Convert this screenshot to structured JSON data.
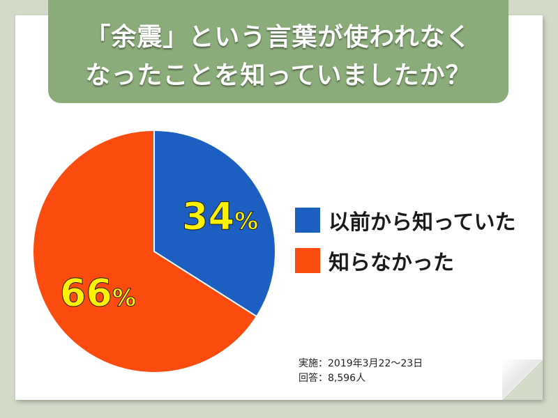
{
  "title": {
    "line1": "「余震」という言葉が使われなく",
    "line2": "なったことを知っていましたか？"
  },
  "colors": {
    "background": "#d3dbc8",
    "banner": "#8aac78",
    "knew": "#1c5fc0",
    "did_not_know": "#fb4b0f",
    "percent_label": "#fff200"
  },
  "chart_data": {
    "type": "pie",
    "title": "「余震」という言葉が使われなくなったことを知っていましたか？",
    "slices": [
      {
        "label": "以前から知っていた",
        "value": 34,
        "display": "34",
        "unit": "%"
      },
      {
        "label": "知らなかった",
        "value": 66,
        "display": "66",
        "unit": "%"
      }
    ],
    "start_angle": "12 o'clock",
    "direction": "clockwise",
    "legend_placement": "right"
  },
  "footnote": {
    "period": "実施：2019年3月22～23日",
    "respondents": "回答：8,596人"
  }
}
